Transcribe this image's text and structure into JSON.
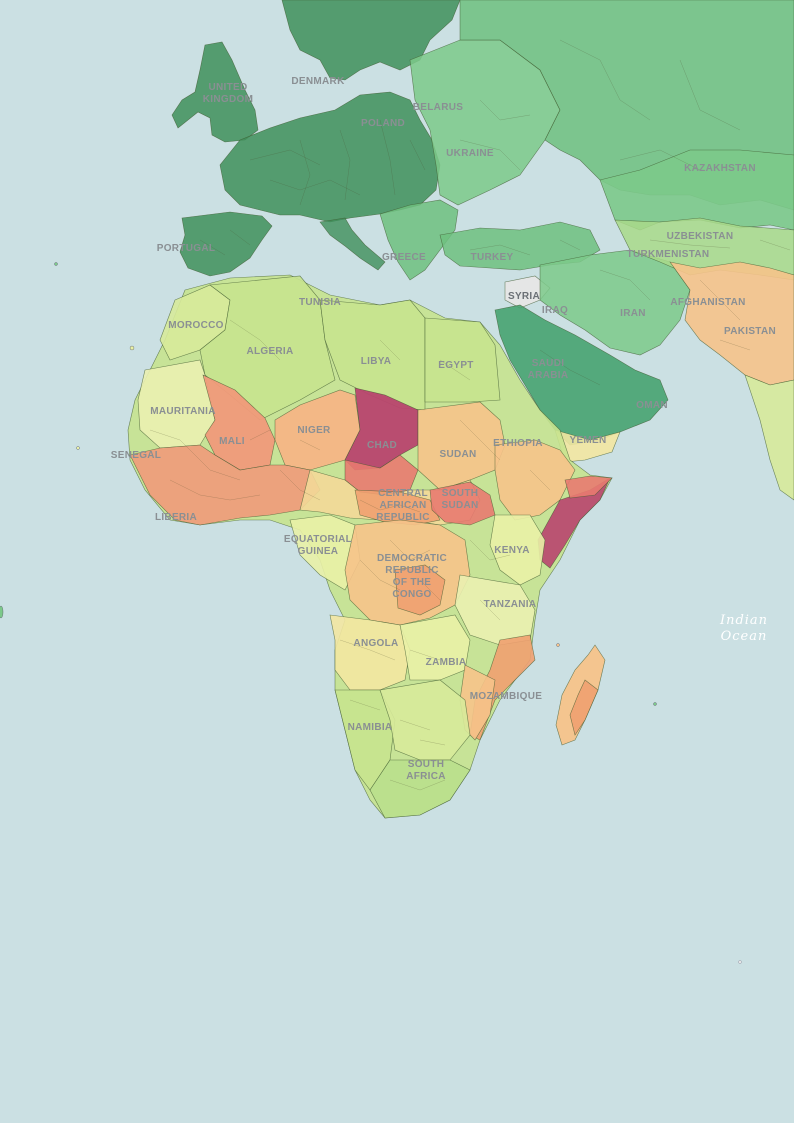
{
  "map": {
    "ocean_labels": [
      {
        "id": "indian-ocean",
        "lines": [
          "Indian",
          "Ocean"
        ]
      }
    ],
    "country_labels": [
      {
        "id": "united-kingdom",
        "lines": [
          "UNITED",
          "KINGDOM"
        ]
      },
      {
        "id": "denmark",
        "lines": [
          "DENMARK"
        ]
      },
      {
        "id": "poland",
        "lines": [
          "POLAND"
        ]
      },
      {
        "id": "belarus",
        "lines": [
          "BELARUS"
        ]
      },
      {
        "id": "ukraine",
        "lines": [
          "UKRAINE"
        ]
      },
      {
        "id": "kazakhstan",
        "lines": [
          "KAZAKHSTAN"
        ]
      },
      {
        "id": "portugal",
        "lines": [
          "PORTUGAL"
        ]
      },
      {
        "id": "greece",
        "lines": [
          "GREECE"
        ]
      },
      {
        "id": "turkey",
        "lines": [
          "TURKEY"
        ]
      },
      {
        "id": "uzbekistan",
        "lines": [
          "UZBEKISTAN"
        ]
      },
      {
        "id": "turkmenistan",
        "lines": [
          "TURKMENISTAN"
        ]
      },
      {
        "id": "syria",
        "lines": [
          "SYRIA"
        ]
      },
      {
        "id": "iraq",
        "lines": [
          "IRAQ"
        ]
      },
      {
        "id": "iran",
        "lines": [
          "IRAN"
        ]
      },
      {
        "id": "afghanistan",
        "lines": [
          "AFGHANISTAN"
        ]
      },
      {
        "id": "pakistan",
        "lines": [
          "PAKISTAN"
        ]
      },
      {
        "id": "morocco",
        "lines": [
          "MOROCCO"
        ]
      },
      {
        "id": "tunisia",
        "lines": [
          "TUNISIA"
        ]
      },
      {
        "id": "algeria",
        "lines": [
          "ALGERIA"
        ]
      },
      {
        "id": "libya",
        "lines": [
          "LIBYA"
        ]
      },
      {
        "id": "egypt",
        "lines": [
          "EGYPT"
        ]
      },
      {
        "id": "saudi-arabia",
        "lines": [
          "SAUDI",
          "ARABIA"
        ]
      },
      {
        "id": "oman",
        "lines": [
          "OMAN"
        ]
      },
      {
        "id": "yemen",
        "lines": [
          "YEMEN"
        ]
      },
      {
        "id": "mauritania",
        "lines": [
          "MAURITANIA"
        ]
      },
      {
        "id": "mali",
        "lines": [
          "MALI"
        ]
      },
      {
        "id": "niger",
        "lines": [
          "NIGER"
        ]
      },
      {
        "id": "chad",
        "lines": [
          "CHAD"
        ]
      },
      {
        "id": "sudan",
        "lines": [
          "SUDAN"
        ]
      },
      {
        "id": "ethiopia",
        "lines": [
          "ETHIOPIA"
        ]
      },
      {
        "id": "senegal",
        "lines": [
          "SENEGAL"
        ]
      },
      {
        "id": "liberia",
        "lines": [
          "LIBERIA"
        ]
      },
      {
        "id": "central-african-republic",
        "lines": [
          "CENTRAL",
          "AFRICAN",
          "REPUBLIC"
        ]
      },
      {
        "id": "south-sudan",
        "lines": [
          "SOUTH",
          "SUDAN"
        ]
      },
      {
        "id": "equatorial-guinea",
        "lines": [
          "EQUATORIAL",
          "GUINEA"
        ]
      },
      {
        "id": "kenya",
        "lines": [
          "KENYA"
        ]
      },
      {
        "id": "democratic-republic-of-the-congo",
        "lines": [
          "DEMOCRATIC",
          "REPUBLIC",
          "OF THE",
          "CONGO"
        ]
      },
      {
        "id": "tanzania",
        "lines": [
          "TANZANIA"
        ]
      },
      {
        "id": "angola",
        "lines": [
          "ANGOLA"
        ]
      },
      {
        "id": "zambia",
        "lines": [
          "ZAMBIA"
        ]
      },
      {
        "id": "mozambique",
        "lines": [
          "MOZAMBIQUE"
        ]
      },
      {
        "id": "namibia",
        "lines": [
          "NAMIBIA"
        ]
      },
      {
        "id": "south-africa",
        "lines": [
          "SOUTH",
          "AFRICA"
        ]
      }
    ],
    "colors": {
      "ocean": "#cbe0e3",
      "dark_green": "#3f8f5a",
      "green": "#6fbf7f",
      "light_green": "#a9d98a",
      "pale_yellow": "#e9f1a6",
      "yellow": "#f3e7a1",
      "light_orange": "#f6c38a",
      "orange": "#f0a070",
      "red": "#e06060",
      "dark_red": "#b0406a",
      "grey": "#e6e6e6"
    }
  }
}
